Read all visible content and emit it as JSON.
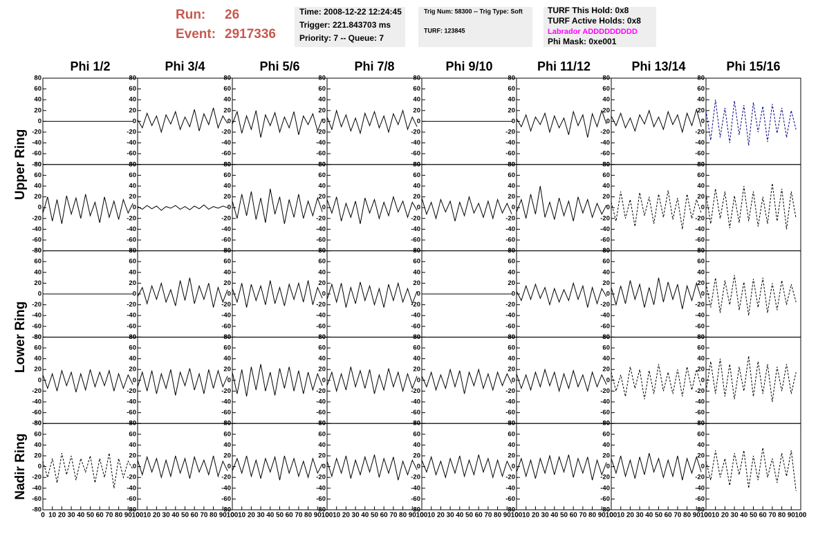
{
  "header": {
    "run_label": "Run:",
    "run": "26",
    "event_label": "Event:",
    "event": "2917336",
    "time": "Time: 2008-12-22 12:24:45",
    "trigger": "Trigger: 221.843703 ms",
    "priority": "Priority: 7 -- Queue: 7",
    "trig_num": "Trig Num: 58300 -- Trig Type: Soft",
    "turf": "TURF: 123845",
    "turf_hold": "TURF This Hold: 0x8",
    "turf_active": "TURF Active Holds: 0x8",
    "labrador": "Labrador ADDDDDDDDD",
    "phi_mask": "Phi Mask: 0xe001"
  },
  "chart_data": {
    "type": "waveform-grid",
    "column_titles": [
      "Phi 1/2",
      "Phi 3/4",
      "Phi 5/6",
      "Phi 7/8",
      "Phi 9/10",
      "Phi 11/12",
      "Phi 13/14",
      "Phi 15/16"
    ],
    "row_titles": [
      "Upper Ring",
      "Lower Ring",
      "Nadir Ring"
    ],
    "xlim": [
      0,
      100
    ],
    "ylim": [
      -80,
      80
    ],
    "xticks": [
      0,
      10,
      20,
      30,
      40,
      50,
      60,
      70,
      80,
      90,
      100
    ],
    "yticks": [
      -80,
      -60,
      -40,
      -20,
      0,
      20,
      40,
      60,
      80
    ],
    "x": [
      0,
      5,
      10,
      15,
      20,
      25,
      30,
      35,
      40,
      45,
      50,
      55,
      60,
      65,
      70,
      75,
      80,
      85,
      90,
      95
    ],
    "series": [
      {
        "color": "#000000",
        "values": [
          0,
          0,
          0,
          0,
          0,
          0,
          0,
          0,
          0,
          0,
          0,
          0,
          0,
          0,
          0,
          0,
          0,
          0,
          0,
          0
        ]
      },
      {
        "color": "#000000",
        "values": [
          3,
          -12,
          15,
          -8,
          10,
          -20,
          12,
          -5,
          18,
          -15,
          8,
          -10,
          22,
          -18,
          14,
          -6,
          25,
          -12,
          10,
          -4
        ]
      },
      {
        "color": "#000000",
        "values": [
          -5,
          18,
          -22,
          10,
          -15,
          20,
          -30,
          12,
          -8,
          16,
          -20,
          8,
          -12,
          18,
          -25,
          10,
          -6,
          14,
          -18,
          5
        ]
      },
      {
        "color": "#000000",
        "values": [
          8,
          -15,
          20,
          -10,
          12,
          -18,
          6,
          -22,
          15,
          -8,
          18,
          -12,
          10,
          -20,
          14,
          -6,
          20,
          -15,
          8,
          -10
        ]
      },
      {
        "color": "#000000",
        "values": [
          0,
          0,
          0,
          0,
          0,
          0,
          0,
          0,
          0,
          0,
          0,
          0,
          0,
          0,
          0,
          0,
          0,
          0,
          0,
          0
        ]
      },
      {
        "color": "#000000",
        "values": [
          5,
          -10,
          12,
          -18,
          8,
          -6,
          15,
          -20,
          10,
          -12,
          6,
          -25,
          18,
          -8,
          12,
          -30,
          14,
          -10,
          20,
          -5
        ]
      },
      {
        "color": "#000000",
        "values": [
          10,
          -8,
          15,
          -12,
          6,
          -18,
          12,
          -5,
          20,
          -10,
          8,
          -15,
          18,
          -6,
          12,
          -20,
          15,
          -8,
          22,
          -10
        ]
      },
      {
        "color": "#000080",
        "dashed": true,
        "values": [
          20,
          -35,
          40,
          -30,
          25,
          -40,
          38,
          -25,
          30,
          -45,
          35,
          -20,
          28,
          -38,
          32,
          -22,
          25,
          -30,
          20,
          -15
        ]
      },
      {
        "color": "#000000",
        "values": [
          -10,
          20,
          -25,
          15,
          -30,
          22,
          -12,
          18,
          -20,
          25,
          -15,
          10,
          -28,
          20,
          -18,
          12,
          -22,
          15,
          -10,
          8
        ]
      },
      {
        "color": "#000000",
        "values": [
          2,
          -3,
          4,
          -2,
          3,
          -5,
          2,
          -1,
          4,
          -3,
          2,
          -4,
          3,
          -2,
          5,
          -3,
          2,
          -1,
          3,
          0
        ]
      },
      {
        "color": "#000000",
        "values": [
          12,
          -20,
          25,
          -15,
          30,
          -22,
          18,
          -28,
          35,
          -12,
          20,
          -30,
          15,
          -18,
          25,
          -20,
          12,
          -15,
          18,
          -8
        ]
      },
      {
        "color": "#000000",
        "values": [
          15,
          -10,
          20,
          -25,
          8,
          -18,
          12,
          -30,
          18,
          -10,
          15,
          -20,
          10,
          -15,
          20,
          -8,
          12,
          -18,
          10,
          -5
        ]
      },
      {
        "color": "#000000",
        "values": [
          18,
          -12,
          10,
          -20,
          15,
          -8,
          12,
          -25,
          10,
          -15,
          20,
          -10,
          8,
          -18,
          12,
          -20,
          15,
          -10,
          8,
          -12
        ]
      },
      {
        "color": "#000000",
        "values": [
          -8,
          15,
          -20,
          25,
          -12,
          40,
          -18,
          10,
          -22,
          18,
          -15,
          12,
          -25,
          20,
          -10,
          15,
          -18,
          8,
          -12,
          5
        ]
      },
      {
        "color": "#000000",
        "dashed": true,
        "values": [
          10,
          -25,
          30,
          -20,
          15,
          -35,
          28,
          -15,
          20,
          -30,
          25,
          -18,
          32,
          -22,
          18,
          -40,
          25,
          -20,
          15,
          -10
        ]
      },
      {
        "color": "#000000",
        "dashed": true,
        "values": [
          25,
          -30,
          35,
          -20,
          30,
          -38,
          22,
          -28,
          40,
          -25,
          30,
          -35,
          20,
          -30,
          45,
          -25,
          35,
          -40,
          30,
          -20
        ]
      },
      {
        "color": "#000000",
        "values": [
          0,
          0,
          0,
          0,
          0,
          0,
          0,
          0,
          0,
          0,
          0,
          0,
          0,
          0,
          0,
          0,
          0,
          0,
          0,
          0
        ]
      },
      {
        "color": "#000000",
        "values": [
          -5,
          12,
          -18,
          15,
          -10,
          20,
          -15,
          8,
          -22,
          25,
          -12,
          30,
          -18,
          15,
          -10,
          20,
          -25,
          12,
          -15,
          8
        ]
      },
      {
        "color": "#000000",
        "values": [
          10,
          -15,
          20,
          -25,
          18,
          -12,
          15,
          -20,
          25,
          -18,
          12,
          -22,
          18,
          -10,
          20,
          -15,
          25,
          -20,
          12,
          -8
        ]
      },
      {
        "color": "#000000",
        "values": [
          -10,
          18,
          -15,
          20,
          -25,
          12,
          -18,
          22,
          -12,
          15,
          -20,
          10,
          -25,
          18,
          -12,
          20,
          -15,
          10,
          -18,
          5
        ]
      },
      {
        "color": "#000000",
        "values": [
          0,
          0,
          0,
          0,
          0,
          0,
          0,
          0,
          0,
          0,
          0,
          0,
          0,
          0,
          0,
          0,
          0,
          0,
          0,
          0
        ]
      },
      {
        "color": "#000000",
        "values": [
          5,
          -12,
          15,
          -10,
          18,
          -8,
          12,
          -20,
          10,
          -15,
          8,
          -12,
          20,
          -10,
          15,
          -25,
          12,
          -18,
          10,
          -5
        ]
      },
      {
        "color": "#000000",
        "values": [
          12,
          -20,
          15,
          -18,
          25,
          -10,
          18,
          -25,
          12,
          -20,
          30,
          -15,
          22,
          -10,
          18,
          -28,
          15,
          -12,
          20,
          -8
        ]
      },
      {
        "color": "#000000",
        "dashed": true,
        "values": [
          20,
          -25,
          30,
          -35,
          25,
          -20,
          35,
          -30,
          22,
          -40,
          28,
          -25,
          30,
          -35,
          20,
          -30,
          25,
          -20,
          18,
          -15
        ]
      },
      {
        "color": "#000000",
        "values": [
          10,
          -15,
          12,
          -20,
          18,
          -10,
          15,
          -22,
          12,
          -18,
          20,
          -12,
          15,
          -10,
          18,
          -20,
          12,
          -15,
          10,
          -8
        ]
      },
      {
        "color": "#000000",
        "values": [
          -12,
          15,
          -20,
          18,
          -25,
          12,
          -15,
          20,
          -28,
          15,
          -10,
          22,
          -18,
          12,
          -25,
          20,
          -15,
          18,
          -12,
          8
        ]
      },
      {
        "color": "#000000",
        "values": [
          15,
          -25,
          20,
          -30,
          25,
          -18,
          30,
          -20,
          15,
          -28,
          22,
          -15,
          25,
          -20,
          18,
          -25,
          15,
          -18,
          12,
          -10
        ]
      },
      {
        "color": "#000000",
        "values": [
          -10,
          15,
          -20,
          12,
          -18,
          25,
          -12,
          18,
          -15,
          20,
          -25,
          10,
          -18,
          22,
          -12,
          15,
          -20,
          12,
          -15,
          8
        ]
      },
      {
        "color": "#000000",
        "values": [
          8,
          -12,
          15,
          -18,
          10,
          -15,
          20,
          -12,
          18,
          -25,
          15,
          -10,
          20,
          -15,
          12,
          -18,
          15,
          -10,
          12,
          -6
        ]
      },
      {
        "color": "#000000",
        "values": [
          12,
          -15,
          10,
          -18,
          15,
          -12,
          20,
          -10,
          15,
          -20,
          12,
          -15,
          18,
          -12,
          10,
          -20,
          15,
          -12,
          10,
          -8
        ]
      },
      {
        "color": "#000000",
        "dashed": true,
        "values": [
          15,
          -20,
          10,
          -30,
          25,
          -15,
          20,
          -35,
          18,
          -25,
          30,
          -20,
          15,
          -25,
          20,
          -30,
          25,
          -18,
          20,
          -12
        ]
      },
      {
        "color": "#000000",
        "dashed": true,
        "values": [
          -20,
          35,
          -25,
          40,
          -30,
          30,
          -35,
          25,
          -20,
          45,
          -30,
          35,
          -25,
          30,
          -40,
          25,
          -20,
          30,
          -25,
          15
        ]
      },
      {
        "color": "#000000",
        "dashed": true,
        "values": [
          10,
          -20,
          15,
          -30,
          25,
          -15,
          20,
          -25,
          15,
          -10,
          20,
          -30,
          15,
          -20,
          25,
          -40,
          15,
          -20,
          10,
          -5
        ]
      },
      {
        "color": "#000000",
        "values": [
          12,
          -15,
          18,
          -10,
          15,
          -20,
          12,
          -18,
          20,
          -12,
          15,
          -22,
          18,
          -10,
          12,
          -15,
          20,
          -18,
          10,
          -8
        ]
      },
      {
        "color": "#000000",
        "values": [
          -8,
          15,
          -12,
          20,
          -18,
          12,
          -22,
          15,
          -10,
          18,
          -25,
          20,
          -12,
          15,
          -18,
          10,
          -20,
          15,
          -12,
          5
        ]
      },
      {
        "color": "#000000",
        "values": [
          10,
          -18,
          15,
          -12,
          20,
          -22,
          12,
          -15,
          18,
          -10,
          22,
          -20,
          15,
          -12,
          18,
          -25,
          10,
          -15,
          12,
          -6
        ]
      },
      {
        "color": "#000000",
        "values": [
          12,
          -10,
          18,
          -15,
          10,
          -20,
          15,
          -12,
          20,
          -18,
          12,
          -15,
          22,
          -10,
          15,
          -20,
          12,
          -18,
          10,
          -8
        ]
      },
      {
        "color": "#000000",
        "values": [
          -10,
          15,
          -18,
          12,
          -22,
          15,
          -12,
          20,
          -15,
          18,
          -10,
          22,
          -20,
          15,
          -12,
          18,
          -25,
          12,
          -15,
          8
        ]
      },
      {
        "color": "#000000",
        "values": [
          15,
          -12,
          20,
          -18,
          12,
          -22,
          18,
          -15,
          25,
          -10,
          15,
          -20,
          12,
          -18,
          20,
          -25,
          15,
          -12,
          18,
          -10
        ]
      },
      {
        "color": "#000000",
        "dashed": true,
        "values": [
          10,
          -25,
          30,
          -20,
          15,
          -35,
          25,
          -15,
          30,
          -40,
          20,
          -25,
          35,
          -20,
          15,
          -30,
          25,
          -18,
          30,
          -45
        ]
      }
    ]
  }
}
